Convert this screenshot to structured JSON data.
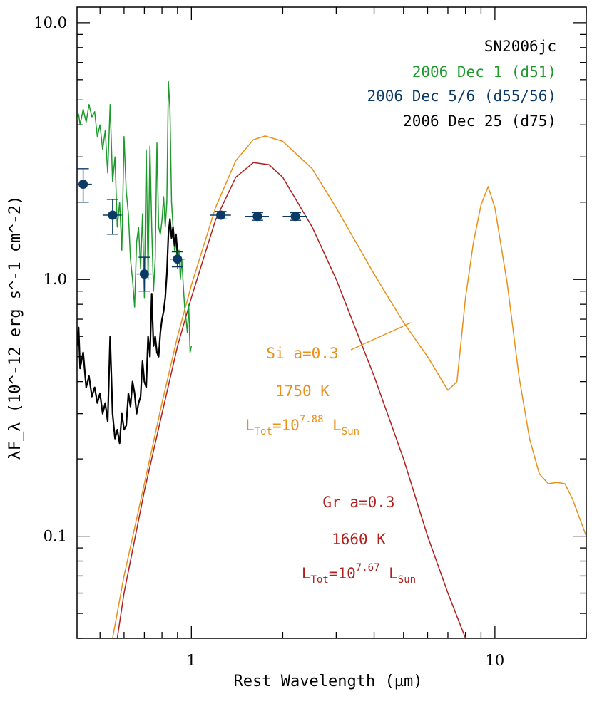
{
  "chart_data": {
    "type": "line",
    "title": "SN2006jc",
    "xlabel": "Rest Wavelength (µm)",
    "ylabel": "λF_λ (10^-12 erg s^-1 cm^-2)",
    "xscale": "log",
    "yscale": "log",
    "xlim": [
      0.42,
      20.0
    ],
    "ylim": [
      0.04,
      11.5
    ],
    "xticks": [
      {
        "value": 1,
        "label": "1"
      },
      {
        "value": 10,
        "label": "10"
      }
    ],
    "yticks": [
      {
        "value": 0.1,
        "label": "0.1"
      },
      {
        "value": 1,
        "label": "1.0"
      },
      {
        "value": 10,
        "label": "10.0"
      }
    ],
    "legend": {
      "placement": "top-right",
      "entries": [
        {
          "text": "SN2006jc",
          "color": "#000000"
        },
        {
          "text": "2006 Dec 1 (d51)",
          "color": "#1e9a2c"
        },
        {
          "text": "2006 Dec 5/6 (d55/56)",
          "color": "#0c3a66"
        },
        {
          "text": "2006 Dec 25 (d75)",
          "color": "#000000"
        }
      ]
    },
    "series": [
      {
        "name": "2006 Dec 1 (d51)",
        "kind": "spectrum",
        "color": "#1e9a2c",
        "x": [
          0.42,
          0.425,
          0.43,
          0.44,
          0.45,
          0.46,
          0.47,
          0.48,
          0.49,
          0.5,
          0.51,
          0.52,
          0.53,
          0.54,
          0.55,
          0.56,
          0.57,
          0.58,
          0.59,
          0.6,
          0.61,
          0.62,
          0.63,
          0.64,
          0.65,
          0.66,
          0.67,
          0.68,
          0.69,
          0.7,
          0.71,
          0.72,
          0.73,
          0.74,
          0.75,
          0.76,
          0.77,
          0.78,
          0.79,
          0.8,
          0.81,
          0.82,
          0.83,
          0.84,
          0.85,
          0.86,
          0.87,
          0.88,
          0.89,
          0.9,
          0.91,
          0.92,
          0.93,
          0.94,
          0.95,
          0.96,
          0.97,
          0.98,
          0.99,
          1.0
        ],
        "y": [
          4.2,
          4.4,
          4.0,
          4.6,
          4.1,
          4.8,
          4.3,
          4.5,
          3.6,
          4.0,
          3.2,
          3.8,
          2.6,
          4.8,
          2.4,
          3.0,
          1.6,
          2.0,
          1.3,
          3.6,
          2.2,
          1.8,
          1.2,
          1.0,
          0.78,
          1.4,
          1.6,
          1.1,
          1.8,
          0.85,
          3.2,
          1.0,
          3.3,
          1.6,
          0.9,
          1.2,
          3.4,
          1.6,
          1.5,
          1.7,
          2.1,
          1.6,
          2.0,
          5.9,
          4.6,
          2.0,
          1.6,
          1.3,
          1.4,
          1.1,
          1.3,
          1.0,
          1.2,
          0.95,
          0.78,
          0.7,
          0.62,
          0.8,
          0.52,
          0.55
        ]
      },
      {
        "name": "2006 Dec 5/6 (d55/56)",
        "kind": "photometry",
        "color": "#0c3a66",
        "points": [
          {
            "x": 0.44,
            "y": 2.35,
            "xerr": [
              0.42,
              0.47
            ],
            "yerr": [
              2.0,
              2.7
            ]
          },
          {
            "x": 0.55,
            "y": 1.78,
            "xerr": [
              0.51,
              0.59
            ],
            "yerr": [
              1.5,
              2.05
            ]
          },
          {
            "x": 0.7,
            "y": 1.05,
            "xerr": [
              0.66,
              0.74
            ],
            "yerr": [
              0.9,
              1.22
            ]
          },
          {
            "x": 0.9,
            "y": 1.2,
            "xerr": [
              0.85,
              0.95
            ],
            "yerr": [
              1.12,
              1.28
            ]
          },
          {
            "x": 1.25,
            "y": 1.78,
            "xerr": [
              1.15,
              1.35
            ],
            "yerr": [
              1.72,
              1.84
            ]
          },
          {
            "x": 1.65,
            "y": 1.76,
            "xerr": [
              1.5,
              1.8
            ],
            "yerr": [
              1.7,
              1.82
            ]
          },
          {
            "x": 2.2,
            "y": 1.76,
            "xerr": [
              2.0,
              2.4
            ],
            "yerr": [
              1.7,
              1.82
            ]
          }
        ]
      },
      {
        "name": "2006 Dec 25 (d75)",
        "kind": "spectrum",
        "color": "#000000",
        "x": [
          0.42,
          0.425,
          0.43,
          0.44,
          0.45,
          0.46,
          0.47,
          0.48,
          0.49,
          0.5,
          0.51,
          0.52,
          0.53,
          0.54,
          0.55,
          0.56,
          0.57,
          0.58,
          0.59,
          0.6,
          0.61,
          0.62,
          0.63,
          0.64,
          0.65,
          0.66,
          0.67,
          0.68,
          0.69,
          0.7,
          0.71,
          0.72,
          0.73,
          0.74,
          0.75,
          0.76,
          0.77,
          0.78,
          0.79,
          0.8,
          0.81,
          0.82,
          0.83,
          0.84,
          0.85,
          0.86,
          0.87,
          0.88,
          0.89,
          0.9,
          0.91
        ],
        "y": [
          0.55,
          0.65,
          0.45,
          0.52,
          0.38,
          0.42,
          0.35,
          0.38,
          0.33,
          0.36,
          0.3,
          0.33,
          0.28,
          0.6,
          0.3,
          0.24,
          0.26,
          0.23,
          0.3,
          0.26,
          0.27,
          0.36,
          0.32,
          0.4,
          0.36,
          0.3,
          0.33,
          0.35,
          0.48,
          0.4,
          0.38,
          0.6,
          0.5,
          0.88,
          0.55,
          0.6,
          0.52,
          0.5,
          0.62,
          0.7,
          0.75,
          0.85,
          1.05,
          1.5,
          1.72,
          1.45,
          1.6,
          1.35,
          1.5,
          1.25,
          1.2
        ]
      },
      {
        "name": "Si a=0.3",
        "kind": "model",
        "color": "#e8901a",
        "x": [
          0.55,
          0.6,
          0.7,
          0.8,
          0.9,
          1.0,
          1.2,
          1.4,
          1.6,
          1.75,
          2.0,
          2.5,
          3.0,
          4.0,
          5.0,
          6.0,
          7.0,
          7.5,
          8.0,
          8.5,
          9.0,
          9.5,
          10.0,
          11.0,
          12.0,
          13.0,
          14.0,
          15.0,
          16.0,
          17.0,
          18.0,
          20.0
        ],
        "y": [
          0.04,
          0.07,
          0.16,
          0.33,
          0.6,
          0.95,
          1.9,
          2.9,
          3.5,
          3.62,
          3.45,
          2.7,
          1.9,
          1.05,
          0.68,
          0.5,
          0.37,
          0.4,
          0.85,
          1.4,
          1.95,
          2.3,
          1.9,
          0.95,
          0.42,
          0.24,
          0.175,
          0.16,
          0.162,
          0.16,
          0.14,
          0.1
        ]
      },
      {
        "name": "Gr a=0.3",
        "kind": "model",
        "color": "#b0201c",
        "x": [
          0.57,
          0.6,
          0.7,
          0.8,
          0.9,
          1.0,
          1.2,
          1.4,
          1.6,
          1.8,
          2.0,
          2.5,
          3.0,
          4.0,
          5.0,
          6.0,
          7.0,
          8.0
        ],
        "y": [
          0.04,
          0.06,
          0.15,
          0.3,
          0.55,
          0.85,
          1.7,
          2.5,
          2.85,
          2.8,
          2.5,
          1.6,
          1.0,
          0.42,
          0.2,
          0.1,
          0.06,
          0.04
        ]
      }
    ],
    "annotations": [
      {
        "text": "Si a=0.3",
        "color": "#e8901a",
        "pointer_to": {
          "x": 5.0,
          "y": 0.68
        }
      },
      {
        "text": "1750 K",
        "color": "#e8901a"
      },
      {
        "text_main": "L",
        "text_sub1": "Tot",
        "text_mid": "=10",
        "text_sup": "7.88",
        "text_main2": " L",
        "text_sub2": "Sun",
        "color": "#e8901a"
      },
      {
        "text": "Gr a=0.3",
        "color": "#b0201c"
      },
      {
        "text": "1660 K",
        "color": "#b0201c"
      },
      {
        "text_main": "L",
        "text_sub1": "Tot",
        "text_mid": "=10",
        "text_sup": "7.67",
        "text_main2": " L",
        "text_sub2": "Sun",
        "color": "#b0201c"
      }
    ]
  }
}
